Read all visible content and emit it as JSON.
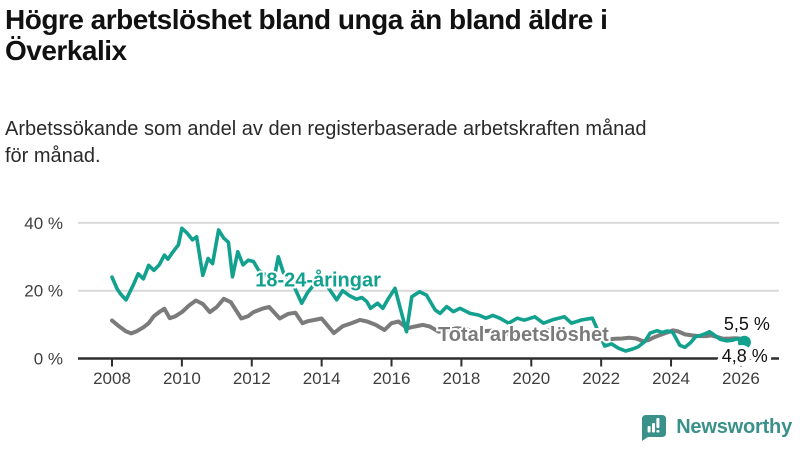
{
  "header": {
    "title": "Högre arbetslöshet bland unga än bland äldre i\nÖverkalix",
    "subtitle": "Arbetssökande som andel av den registerbaserade arbetskraften månad\nför månad."
  },
  "branding": {
    "name": "Newsworthy",
    "icon": "newsworthy-speech-bubble-bar-chart-icon",
    "color": "#3a918a"
  },
  "colors": {
    "youth_line": "#12a08f",
    "total_line": "#7b7b7b",
    "axis": "#2e2e2e",
    "gridline": "#d9d9d9",
    "annotation_text": "#111111"
  },
  "chart_data": {
    "type": "line",
    "unit": "%",
    "xlim": [
      2007.03,
      2027.05
    ],
    "ylim": [
      0,
      42
    ],
    "grid": "horizontal",
    "y_ticks": [
      {
        "label": "0 %",
        "value": 0
      },
      {
        "label": "20 %",
        "value": 20
      },
      {
        "label": "40 %",
        "value": 40
      }
    ],
    "x_ticks": [
      {
        "label": "2008",
        "value": 2008
      },
      {
        "label": "2010",
        "value": 2010
      },
      {
        "label": "2012",
        "value": 2012
      },
      {
        "label": "2014",
        "value": 2014
      },
      {
        "label": "2016",
        "value": 2016
      },
      {
        "label": "2018",
        "value": 2018
      },
      {
        "label": "2020",
        "value": 2020
      },
      {
        "label": "2022",
        "value": 2022
      },
      {
        "label": "2024",
        "value": 2024
      },
      {
        "label": "2026",
        "value": 2026
      }
    ],
    "series": [
      {
        "id": "total",
        "name": "Total arbetslöshet",
        "color": "#7b7b7b",
        "role": "context",
        "end_dot": false,
        "latest_value": 5.5,
        "label_pos": {
          "x": 2017.33,
          "y": 5.2
        },
        "points": [
          [
            2008.0,
            11.2
          ],
          [
            2008.2,
            9.5
          ],
          [
            2008.4,
            8.0
          ],
          [
            2008.55,
            7.4
          ],
          [
            2008.7,
            8.0
          ],
          [
            2008.9,
            9.2
          ],
          [
            2009.05,
            10.4
          ],
          [
            2009.2,
            12.5
          ],
          [
            2009.35,
            13.7
          ],
          [
            2009.5,
            14.7
          ],
          [
            2009.65,
            11.9
          ],
          [
            2009.8,
            12.4
          ],
          [
            2010.0,
            13.7
          ],
          [
            2010.2,
            15.6
          ],
          [
            2010.4,
            17.1
          ],
          [
            2010.6,
            16.1
          ],
          [
            2010.8,
            13.7
          ],
          [
            2011.0,
            15.2
          ],
          [
            2011.2,
            17.6
          ],
          [
            2011.4,
            16.6
          ],
          [
            2011.7,
            11.8
          ],
          [
            2011.9,
            12.5
          ],
          [
            2012.05,
            13.7
          ],
          [
            2012.3,
            14.7
          ],
          [
            2012.5,
            15.2
          ],
          [
            2012.8,
            11.8
          ],
          [
            2013.05,
            13.2
          ],
          [
            2013.25,
            13.5
          ],
          [
            2013.45,
            10.4
          ],
          [
            2013.6,
            11.0
          ],
          [
            2013.8,
            11.4
          ],
          [
            2014.0,
            11.8
          ],
          [
            2014.35,
            7.5
          ],
          [
            2014.6,
            9.5
          ],
          [
            2014.85,
            10.4
          ],
          [
            2015.1,
            11.4
          ],
          [
            2015.3,
            10.9
          ],
          [
            2015.55,
            9.9
          ],
          [
            2015.8,
            8.4
          ],
          [
            2016.0,
            10.4
          ],
          [
            2016.2,
            10.9
          ],
          [
            2016.45,
            8.9
          ],
          [
            2016.65,
            9.4
          ],
          [
            2016.9,
            9.9
          ],
          [
            2017.1,
            9.4
          ],
          [
            2017.35,
            7.9
          ],
          [
            2017.6,
            8.4
          ],
          [
            2017.85,
            8.9
          ],
          [
            2018.1,
            8.7
          ],
          [
            2018.4,
            7.9
          ],
          [
            2018.7,
            8.1
          ],
          [
            2019.0,
            8.3
          ],
          [
            2019.3,
            7.4
          ],
          [
            2019.6,
            7.1
          ],
          [
            2019.9,
            7.3
          ],
          [
            2020.2,
            7.9
          ],
          [
            2020.5,
            8.3
          ],
          [
            2020.8,
            7.9
          ],
          [
            2021.1,
            7.3
          ],
          [
            2021.4,
            6.9
          ],
          [
            2021.7,
            6.6
          ],
          [
            2022.0,
            5.9
          ],
          [
            2022.2,
            5.6
          ],
          [
            2022.4,
            5.8
          ],
          [
            2022.6,
            5.9
          ],
          [
            2022.8,
            6.1
          ],
          [
            2023.0,
            5.9
          ],
          [
            2023.2,
            5.1
          ],
          [
            2023.35,
            5.4
          ],
          [
            2023.5,
            6.2
          ],
          [
            2023.7,
            7.0
          ],
          [
            2023.9,
            7.7
          ],
          [
            2024.05,
            8.3
          ],
          [
            2024.2,
            8.0
          ],
          [
            2024.4,
            7.1
          ],
          [
            2024.6,
            6.8
          ],
          [
            2024.8,
            6.6
          ],
          [
            2025.0,
            6.6
          ],
          [
            2025.15,
            6.8
          ],
          [
            2025.3,
            6.4
          ],
          [
            2025.5,
            5.8
          ],
          [
            2025.7,
            5.9
          ],
          [
            2025.85,
            6.1
          ],
          [
            2026.0,
            5.8
          ],
          [
            2026.1,
            5.5
          ]
        ]
      },
      {
        "id": "youth",
        "name": "18-24-åringar",
        "color": "#12a08f",
        "role": "highlighted",
        "end_dot": true,
        "latest_value": 4.8,
        "label_pos": {
          "x": 2012.1,
          "y": 21.2
        },
        "points": [
          [
            2008.0,
            24.0
          ],
          [
            2008.15,
            20.5
          ],
          [
            2008.25,
            19.0
          ],
          [
            2008.4,
            17.3
          ],
          [
            2008.6,
            21.5
          ],
          [
            2008.75,
            25.0
          ],
          [
            2008.9,
            23.5
          ],
          [
            2009.05,
            27.5
          ],
          [
            2009.2,
            26.0
          ],
          [
            2009.35,
            27.6
          ],
          [
            2009.5,
            30.5
          ],
          [
            2009.6,
            29.3
          ],
          [
            2009.75,
            31.5
          ],
          [
            2009.9,
            33.5
          ],
          [
            2010.0,
            38.4
          ],
          [
            2010.15,
            37.0
          ],
          [
            2010.3,
            35.0
          ],
          [
            2010.42,
            35.9
          ],
          [
            2010.6,
            24.5
          ],
          [
            2010.75,
            29.5
          ],
          [
            2010.88,
            28.0
          ],
          [
            2011.05,
            37.9
          ],
          [
            2011.2,
            35.5
          ],
          [
            2011.33,
            34.3
          ],
          [
            2011.45,
            24.1
          ],
          [
            2011.6,
            31.5
          ],
          [
            2011.75,
            27.6
          ],
          [
            2011.9,
            29.0
          ],
          [
            2012.05,
            28.6
          ],
          [
            2012.2,
            26.0
          ],
          [
            2012.35,
            25.0
          ],
          [
            2012.5,
            24.0
          ],
          [
            2012.62,
            22.5
          ],
          [
            2012.76,
            30.0
          ],
          [
            2012.9,
            25.5
          ],
          [
            2013.05,
            23.5
          ],
          [
            2013.2,
            21.5
          ],
          [
            2013.43,
            16.3
          ],
          [
            2013.6,
            19.5
          ],
          [
            2013.8,
            22.0
          ],
          [
            2014.0,
            23.0
          ],
          [
            2014.15,
            21.5
          ],
          [
            2014.43,
            17.3
          ],
          [
            2014.6,
            20.0
          ],
          [
            2014.8,
            18.5
          ],
          [
            2015.0,
            17.5
          ],
          [
            2015.15,
            18.0
          ],
          [
            2015.29,
            16.8
          ],
          [
            2015.4,
            14.8
          ],
          [
            2015.6,
            16.3
          ],
          [
            2015.75,
            14.8
          ],
          [
            2015.9,
            17.5
          ],
          [
            2016.1,
            20.7
          ],
          [
            2016.43,
            7.9
          ],
          [
            2016.58,
            18.2
          ],
          [
            2016.8,
            19.7
          ],
          [
            2017.0,
            18.7
          ],
          [
            2017.25,
            14.3
          ],
          [
            2017.39,
            13.3
          ],
          [
            2017.58,
            15.3
          ],
          [
            2017.77,
            13.8
          ],
          [
            2017.96,
            14.8
          ],
          [
            2018.25,
            13.3
          ],
          [
            2018.5,
            12.8
          ],
          [
            2018.7,
            11.9
          ],
          [
            2018.9,
            12.7
          ],
          [
            2019.1,
            11.9
          ],
          [
            2019.35,
            10.4
          ],
          [
            2019.6,
            11.9
          ],
          [
            2019.8,
            11.3
          ],
          [
            2020.1,
            12.3
          ],
          [
            2020.35,
            10.4
          ],
          [
            2020.6,
            11.4
          ],
          [
            2020.95,
            12.3
          ],
          [
            2021.15,
            10.4
          ],
          [
            2021.45,
            11.4
          ],
          [
            2021.75,
            11.9
          ],
          [
            2022.1,
            3.7
          ],
          [
            2022.3,
            4.3
          ],
          [
            2022.5,
            3.0
          ],
          [
            2022.7,
            2.2
          ],
          [
            2022.9,
            2.8
          ],
          [
            2023.05,
            3.4
          ],
          [
            2023.25,
            5.0
          ],
          [
            2023.4,
            7.5
          ],
          [
            2023.6,
            8.2
          ],
          [
            2023.75,
            7.7
          ],
          [
            2023.9,
            8.1
          ],
          [
            2024.05,
            7.7
          ],
          [
            2024.25,
            3.9
          ],
          [
            2024.4,
            3.3
          ],
          [
            2024.55,
            4.6
          ],
          [
            2024.7,
            6.4
          ],
          [
            2024.85,
            6.8
          ],
          [
            2025.0,
            7.4
          ],
          [
            2025.1,
            7.9
          ],
          [
            2025.25,
            6.8
          ],
          [
            2025.4,
            5.7
          ],
          [
            2025.6,
            5.2
          ],
          [
            2025.75,
            5.4
          ],
          [
            2025.9,
            5.8
          ],
          [
            2026.0,
            5.3
          ],
          [
            2026.1,
            4.8
          ]
        ]
      }
    ],
    "annotations": [
      {
        "text": "5,5 %",
        "series": "total",
        "x": 2026.83,
        "y": 8.4,
        "anchor": "end"
      },
      {
        "text": "4,8 %",
        "series": "youth",
        "x": 2026.77,
        "y": -1.0,
        "anchor": "end"
      }
    ]
  }
}
